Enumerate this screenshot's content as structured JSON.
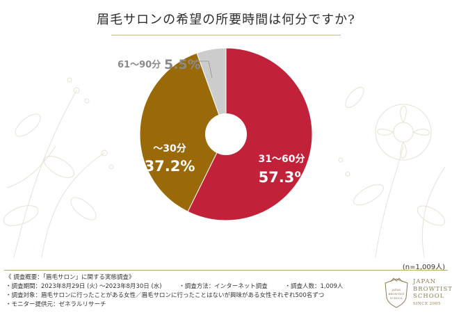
{
  "header": {
    "title": "眉毛サロンの希望の所要時間は何分ですか?"
  },
  "chart_data": {
    "type": "pie",
    "style": "donut",
    "title": "眉毛サロンの希望の所要時間は何分ですか?",
    "slices": [
      {
        "label": "31〜60分",
        "value": 57.3,
        "display": "57.3%",
        "color": "#c1223a"
      },
      {
        "label": "〜30分",
        "value": 37.2,
        "display": "37.2%",
        "color": "#9a6a08"
      },
      {
        "label": "61〜90分",
        "value": 5.5,
        "display": "5.5%",
        "color": "#cccccc"
      }
    ],
    "sample_size": "(n=1,009人)"
  },
  "footer": {
    "heading": "《 調査概要：「眉毛サロン」に関する実態調査》",
    "period": "・調査期間：2023年8月29日 (火) 〜2023年8月30日 (水)",
    "method": "・調査方法：インターネット調査",
    "count": "・調査人数：1,009人",
    "target": "・調査対象：眉毛サロンに行ったことがある女性／眉毛サロンに行ったことはないが興味がある女性それぞれ500名ずつ",
    "provider": "・モニター提供元：ゼネラルリサーチ"
  },
  "logo": {
    "line1": "JAPAN",
    "line2": "BROWTIST",
    "line3": "SCHOOL",
    "since": "SINCE 2005",
    "seal_line1": "JAPAN",
    "seal_line2": "BROWTIST",
    "seal_line3": "SCHOOL"
  }
}
